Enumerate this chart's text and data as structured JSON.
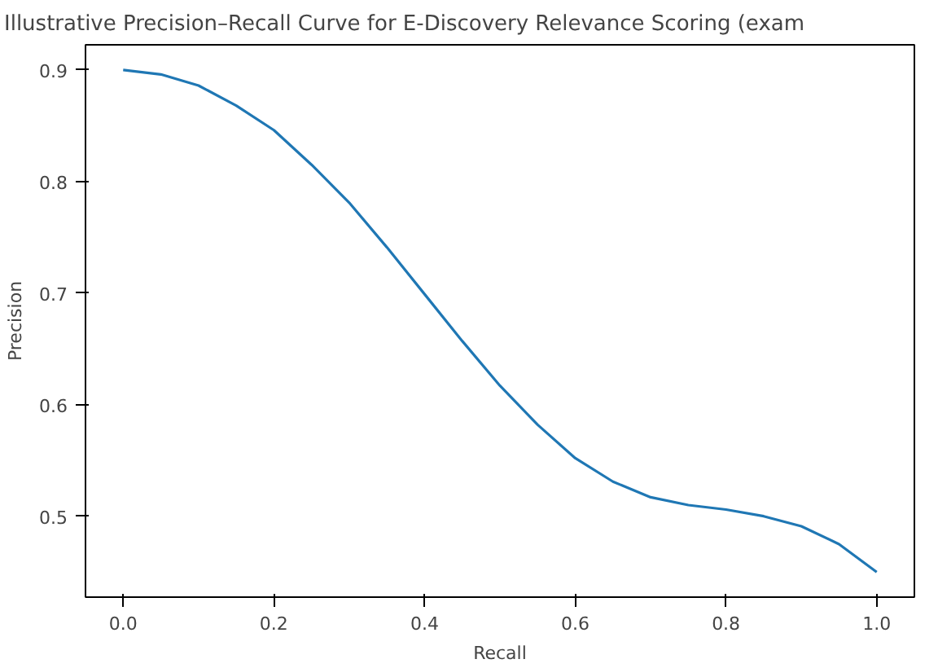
{
  "chart_data": {
    "type": "line",
    "title": "Illustrative Precision–Recall Curve for E-Discovery Relevance Scoring (exam",
    "xlabel": "Recall",
    "ylabel": "Precision",
    "x": [
      0,
      0.05,
      0.1,
      0.15,
      0.2,
      0.25,
      0.3,
      0.35,
      0.4,
      0.45,
      0.5,
      0.55,
      0.6,
      0.65,
      0.7,
      0.75,
      0.8,
      0.85,
      0.9,
      0.95,
      1.0
    ],
    "series": [
      {
        "color": "#1f77b4",
        "values": [
          0.9,
          0.896,
          0.886,
          0.868,
          0.846,
          0.815,
          0.781,
          0.741,
          0.699,
          0.657,
          0.617,
          0.582,
          0.552,
          0.531,
          0.517,
          0.51,
          0.506,
          0.5,
          0.491,
          0.475,
          0.45
        ]
      }
    ],
    "xlim": [
      -0.05,
      1.05
    ],
    "ylim": [
      0.4275,
      0.9225
    ],
    "xticks": [
      {
        "value": 0,
        "label": "0.0"
      },
      0.2,
      0.4,
      0.6,
      0.8,
      {
        "value": 1,
        "label": "1.0"
      }
    ],
    "yticks": [
      0.5,
      0.6,
      0.7,
      0.8,
      0.9
    ],
    "grid": false,
    "marker": "none",
    "line_style": "solid"
  }
}
